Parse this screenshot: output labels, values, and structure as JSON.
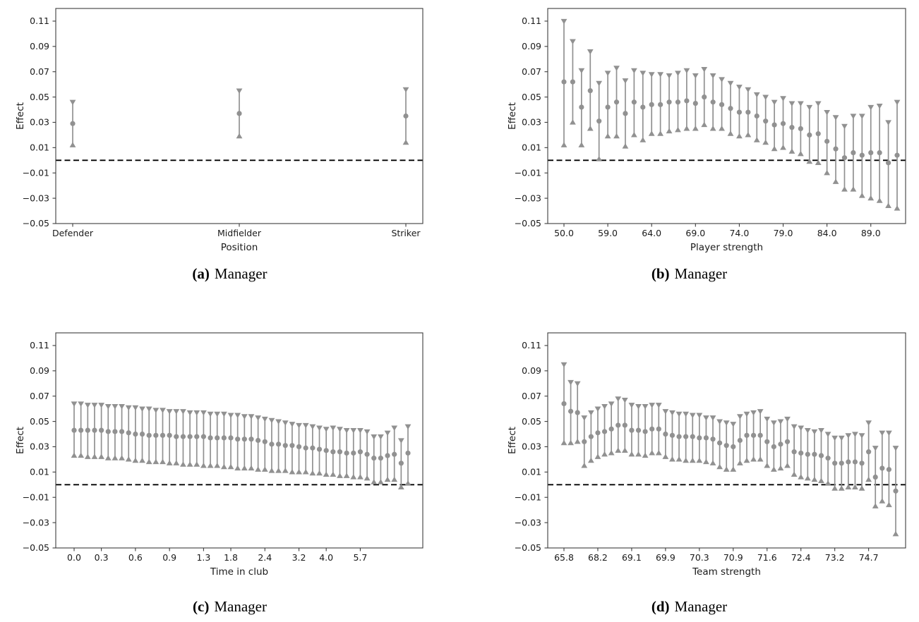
{
  "figure": {
    "background": "#ffffff"
  },
  "style": {
    "errorbar_color": "#919191",
    "spine_color": "#3d3d3d",
    "tick_color": "#3d3d3d",
    "text_color": "#1a1a1a",
    "zero_line_color": "#000000"
  },
  "axis_shared": {
    "ylabel": "Effect",
    "ylim": [
      -0.05,
      0.12
    ],
    "yticks": [
      {
        "v": 0.11,
        "label": "0.11"
      },
      {
        "v": 0.09,
        "label": "0.09"
      },
      {
        "v": 0.07,
        "label": "0.07"
      },
      {
        "v": 0.05,
        "label": "0.05"
      },
      {
        "v": 0.03,
        "label": "0.03"
      },
      {
        "v": 0.01,
        "label": "0.01"
      },
      {
        "v": -0.01,
        "label": "−0.01"
      },
      {
        "v": -0.03,
        "label": "−0.03"
      },
      {
        "v": -0.05,
        "label": "−0.05"
      }
    ],
    "zero_line": 0.0,
    "grid": false
  },
  "chart_data": [
    {
      "id": "a",
      "type": "scatter",
      "subtype": "errorbar",
      "caption_label": "(a)",
      "caption_text": "Manager",
      "xlabel": "Position",
      "ylabel": "Effect",
      "ylim": [
        -0.05,
        0.12
      ],
      "x_mode": "categories",
      "categories": [
        "Defender",
        "Midfielder",
        "Striker"
      ],
      "points": [
        [
          0.029,
          0.012,
          0.046
        ],
        [
          0.037,
          0.019,
          0.055
        ],
        [
          0.035,
          0.014,
          0.056
        ]
      ]
    },
    {
      "id": "b",
      "type": "scatter",
      "subtype": "errorbar",
      "caption_label": "(b)",
      "caption_text": "Manager",
      "xlabel": "Player strength",
      "ylabel": "Effect",
      "ylim": [
        -0.05,
        0.12
      ],
      "x_mode": "binned",
      "xticks": {
        "labels": [
          "50.0",
          "59.0",
          "64.0",
          "69.0",
          "74.0",
          "79.0",
          "84.0",
          "89.0"
        ],
        "indices": [
          0,
          5,
          10,
          15,
          20,
          25,
          30,
          35
        ]
      },
      "points": [
        [
          0.062,
          0.012,
          0.11
        ],
        [
          0.062,
          0.03,
          0.094
        ],
        [
          0.042,
          0.012,
          0.071
        ],
        [
          0.055,
          0.025,
          0.086
        ],
        [
          0.031,
          0.001,
          0.061
        ],
        [
          0.042,
          0.019,
          0.069
        ],
        [
          0.046,
          0.019,
          0.073
        ],
        [
          0.037,
          0.011,
          0.063
        ],
        [
          0.046,
          0.02,
          0.071
        ],
        [
          0.042,
          0.016,
          0.069
        ],
        [
          0.044,
          0.021,
          0.068
        ],
        [
          0.044,
          0.021,
          0.068
        ],
        [
          0.046,
          0.023,
          0.067
        ],
        [
          0.046,
          0.024,
          0.069
        ],
        [
          0.047,
          0.025,
          0.071
        ],
        [
          0.045,
          0.025,
          0.067
        ],
        [
          0.05,
          0.028,
          0.072
        ],
        [
          0.046,
          0.025,
          0.067
        ],
        [
          0.044,
          0.025,
          0.064
        ],
        [
          0.041,
          0.021,
          0.061
        ],
        [
          0.038,
          0.019,
          0.058
        ],
        [
          0.038,
          0.02,
          0.056
        ],
        [
          0.035,
          0.016,
          0.052
        ],
        [
          0.031,
          0.014,
          0.05
        ],
        [
          0.028,
          0.009,
          0.046
        ],
        [
          0.029,
          0.01,
          0.049
        ],
        [
          0.026,
          0.007,
          0.045
        ],
        [
          0.025,
          0.005,
          0.045
        ],
        [
          0.02,
          -0.001,
          0.042
        ],
        [
          0.021,
          -0.002,
          0.045
        ],
        [
          0.015,
          -0.01,
          0.038
        ],
        [
          0.009,
          -0.017,
          0.034
        ],
        [
          0.002,
          -0.023,
          0.027
        ],
        [
          0.006,
          -0.023,
          0.035
        ],
        [
          0.004,
          -0.028,
          0.035
        ],
        [
          0.006,
          -0.03,
          0.042
        ],
        [
          0.006,
          -0.032,
          0.043
        ],
        [
          -0.002,
          -0.036,
          0.03
        ],
        [
          0.004,
          -0.038,
          0.046
        ]
      ]
    },
    {
      "id": "c",
      "type": "scatter",
      "subtype": "errorbar",
      "caption_label": "(c)",
      "caption_text": "Manager",
      "xlabel": "Time in club",
      "ylabel": "Effect",
      "ylim": [
        -0.05,
        0.12
      ],
      "x_mode": "binned",
      "xticks": {
        "labels": [
          "0.0",
          "0.3",
          "0.6",
          "0.9",
          "1.3",
          "1.8",
          "2.4",
          "3.2",
          "4.0",
          "5.7"
        ],
        "indices": [
          0,
          4,
          9,
          14,
          19,
          23,
          28,
          33,
          37,
          42
        ]
      },
      "points": [
        [
          0.043,
          0.023,
          0.064
        ],
        [
          0.043,
          0.023,
          0.064
        ],
        [
          0.043,
          0.022,
          0.063
        ],
        [
          0.043,
          0.022,
          0.063
        ],
        [
          0.043,
          0.022,
          0.063
        ],
        [
          0.042,
          0.021,
          0.062
        ],
        [
          0.042,
          0.021,
          0.062
        ],
        [
          0.042,
          0.021,
          0.062
        ],
        [
          0.041,
          0.02,
          0.061
        ],
        [
          0.04,
          0.019,
          0.061
        ],
        [
          0.04,
          0.019,
          0.06
        ],
        [
          0.039,
          0.018,
          0.06
        ],
        [
          0.039,
          0.018,
          0.059
        ],
        [
          0.039,
          0.018,
          0.059
        ],
        [
          0.039,
          0.017,
          0.058
        ],
        [
          0.038,
          0.017,
          0.058
        ],
        [
          0.038,
          0.016,
          0.058
        ],
        [
          0.038,
          0.016,
          0.057
        ],
        [
          0.038,
          0.016,
          0.057
        ],
        [
          0.038,
          0.015,
          0.057
        ],
        [
          0.037,
          0.015,
          0.056
        ],
        [
          0.037,
          0.015,
          0.056
        ],
        [
          0.037,
          0.014,
          0.056
        ],
        [
          0.037,
          0.014,
          0.055
        ],
        [
          0.036,
          0.013,
          0.055
        ],
        [
          0.036,
          0.013,
          0.054
        ],
        [
          0.036,
          0.013,
          0.054
        ],
        [
          0.035,
          0.012,
          0.053
        ],
        [
          0.034,
          0.012,
          0.052
        ],
        [
          0.032,
          0.011,
          0.051
        ],
        [
          0.032,
          0.011,
          0.05
        ],
        [
          0.031,
          0.011,
          0.049
        ],
        [
          0.031,
          0.01,
          0.048
        ],
        [
          0.03,
          0.01,
          0.047
        ],
        [
          0.029,
          0.01,
          0.047
        ],
        [
          0.029,
          0.009,
          0.046
        ],
        [
          0.028,
          0.009,
          0.045
        ],
        [
          0.027,
          0.008,
          0.044
        ],
        [
          0.026,
          0.008,
          0.045
        ],
        [
          0.026,
          0.007,
          0.044
        ],
        [
          0.025,
          0.007,
          0.043
        ],
        [
          0.025,
          0.006,
          0.043
        ],
        [
          0.026,
          0.006,
          0.043
        ],
        [
          0.024,
          0.005,
          0.042
        ],
        [
          0.021,
          0.002,
          0.038
        ],
        [
          0.021,
          0.002,
          0.038
        ],
        [
          0.023,
          0.004,
          0.041
        ],
        [
          0.024,
          0.004,
          0.045
        ],
        [
          0.017,
          -0.002,
          0.035
        ],
        [
          0.025,
          0.001,
          0.046
        ]
      ]
    },
    {
      "id": "d",
      "type": "scatter",
      "subtype": "errorbar",
      "caption_label": "(d)",
      "caption_text": "Manager",
      "xlabel": "Team strength",
      "ylabel": "Effect",
      "ylim": [
        -0.05,
        0.12
      ],
      "x_mode": "binned",
      "xticks": {
        "labels": [
          "65.8",
          "68.2",
          "69.1",
          "69.9",
          "70.3",
          "70.9",
          "71.6",
          "72.4",
          "73.2",
          "74.7"
        ],
        "indices": [
          0,
          5,
          10,
          15,
          20,
          25,
          30,
          35,
          40,
          45
        ]
      },
      "points": [
        [
          0.064,
          0.033,
          0.095
        ],
        [
          0.058,
          0.033,
          0.081
        ],
        [
          0.057,
          0.034,
          0.08
        ],
        [
          0.034,
          0.015,
          0.053
        ],
        [
          0.038,
          0.019,
          0.057
        ],
        [
          0.041,
          0.022,
          0.06
        ],
        [
          0.042,
          0.024,
          0.062
        ],
        [
          0.044,
          0.025,
          0.064
        ],
        [
          0.047,
          0.027,
          0.068
        ],
        [
          0.047,
          0.027,
          0.067
        ],
        [
          0.043,
          0.024,
          0.063
        ],
        [
          0.043,
          0.024,
          0.062
        ],
        [
          0.042,
          0.023,
          0.062
        ],
        [
          0.044,
          0.025,
          0.063
        ],
        [
          0.044,
          0.025,
          0.063
        ],
        [
          0.04,
          0.022,
          0.058
        ],
        [
          0.039,
          0.02,
          0.057
        ],
        [
          0.038,
          0.02,
          0.056
        ],
        [
          0.038,
          0.019,
          0.056
        ],
        [
          0.038,
          0.019,
          0.055
        ],
        [
          0.037,
          0.019,
          0.055
        ],
        [
          0.037,
          0.018,
          0.053
        ],
        [
          0.036,
          0.017,
          0.053
        ],
        [
          0.033,
          0.014,
          0.05
        ],
        [
          0.031,
          0.012,
          0.049
        ],
        [
          0.03,
          0.012,
          0.048
        ],
        [
          0.035,
          0.017,
          0.054
        ],
        [
          0.039,
          0.019,
          0.056
        ],
        [
          0.039,
          0.02,
          0.057
        ],
        [
          0.039,
          0.02,
          0.058
        ],
        [
          0.034,
          0.015,
          0.052
        ],
        [
          0.03,
          0.012,
          0.049
        ],
        [
          0.032,
          0.013,
          0.05
        ],
        [
          0.034,
          0.015,
          0.052
        ],
        [
          0.026,
          0.008,
          0.046
        ],
        [
          0.025,
          0.006,
          0.045
        ],
        [
          0.024,
          0.005,
          0.043
        ],
        [
          0.024,
          0.004,
          0.042
        ],
        [
          0.023,
          0.003,
          0.043
        ],
        [
          0.021,
          0.001,
          0.04
        ],
        [
          0.017,
          -0.003,
          0.037
        ],
        [
          0.017,
          -0.003,
          0.037
        ],
        [
          0.018,
          -0.002,
          0.039
        ],
        [
          0.018,
          -0.002,
          0.04
        ],
        [
          0.017,
          -0.003,
          0.039
        ],
        [
          0.026,
          0.004,
          0.049
        ],
        [
          0.006,
          -0.017,
          0.029
        ],
        [
          0.013,
          -0.013,
          0.041
        ],
        [
          0.012,
          -0.016,
          0.041
        ],
        [
          -0.005,
          -0.039,
          0.029
        ]
      ]
    }
  ]
}
